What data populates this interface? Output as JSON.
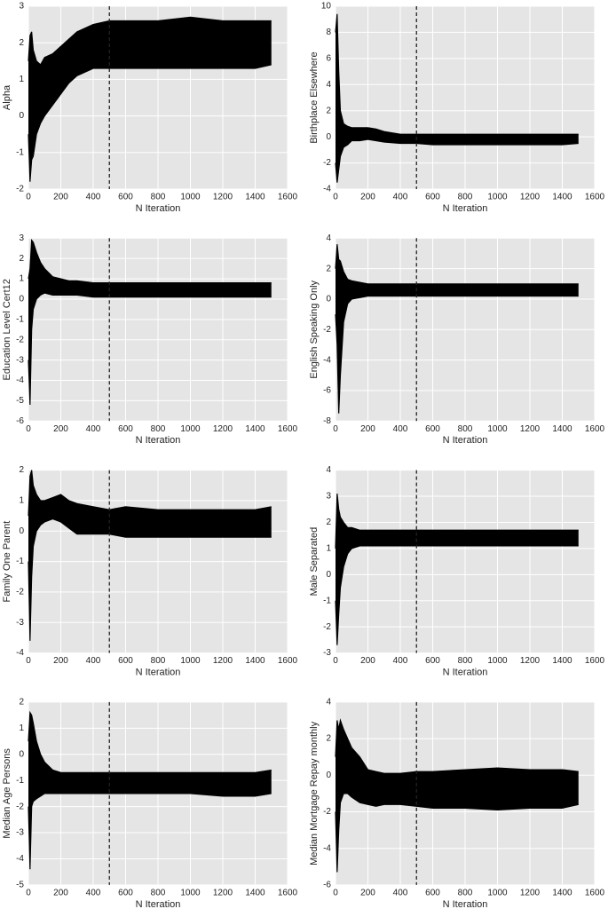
{
  "chart_data": [
    {
      "type": "line",
      "xlabel": "N Iteration",
      "ylabel": "Alpha",
      "x": [
        0,
        10,
        20,
        30,
        50,
        75,
        100,
        150,
        200,
        250,
        300,
        400,
        500,
        600,
        800,
        1000,
        1200,
        1400,
        1500
      ],
      "series": [
        {
          "color": "#000000",
          "values": [
            1.5,
            2.2,
            2.3,
            1.8,
            1.5,
            1.4,
            1.6,
            1.7,
            1.9,
            2.1,
            2.3,
            2.5,
            2.6,
            2.6,
            2.6,
            2.7,
            2.6,
            2.6,
            2.6
          ]
        },
        {
          "color": "#000000",
          "values": [
            -0.5,
            -1.8,
            -1.2,
            -1.1,
            -0.5,
            -0.2,
            0.0,
            0.3,
            0.6,
            0.9,
            1.1,
            1.3,
            1.3,
            1.3,
            1.3,
            1.3,
            1.3,
            1.3,
            1.4
          ]
        }
      ],
      "vline": 500,
      "xlim": [
        0,
        1600
      ],
      "xticks": [
        0,
        200,
        400,
        600,
        800,
        1000,
        1200,
        1400,
        1600
      ],
      "ylim": [
        -2,
        3
      ],
      "yticks": [
        -2,
        -1,
        0,
        1,
        2,
        3
      ],
      "grid": true
    },
    {
      "type": "line",
      "xlabel": "N Iteration",
      "ylabel": "Birthplace Elsewhere",
      "x": [
        0,
        10,
        20,
        30,
        50,
        75,
        100,
        150,
        200,
        250,
        300,
        400,
        500,
        600,
        800,
        1000,
        1200,
        1400,
        1500
      ],
      "series": [
        {
          "color": "#000000",
          "values": [
            8,
            9.4,
            5,
            2,
            1,
            0.8,
            0.7,
            0.7,
            0.7,
            0.6,
            0.4,
            0.2,
            0.2,
            0.2,
            0.2,
            0.2,
            0.2,
            0.2,
            0.2
          ]
        },
        {
          "color": "#000000",
          "values": [
            -2,
            -3.5,
            -2.5,
            -1.5,
            -0.8,
            -0.6,
            -0.3,
            -0.3,
            -0.2,
            -0.3,
            -0.4,
            -0.5,
            -0.5,
            -0.6,
            -0.6,
            -0.6,
            -0.6,
            -0.6,
            -0.5
          ]
        }
      ],
      "vline": 500,
      "xlim": [
        0,
        1600
      ],
      "xticks": [
        0,
        200,
        400,
        600,
        800,
        1000,
        1200,
        1400,
        1600
      ],
      "ylim": [
        -4,
        10
      ],
      "yticks": [
        -4,
        -2,
        0,
        2,
        4,
        6,
        8,
        10
      ],
      "grid": true
    },
    {
      "type": "line",
      "xlabel": "N Iteration",
      "ylabel": "Education Level Cert12",
      "x": [
        0,
        10,
        20,
        30,
        50,
        75,
        100,
        150,
        200,
        250,
        300,
        400,
        500,
        600,
        800,
        1000,
        1200,
        1400,
        1500
      ],
      "series": [
        {
          "color": "#000000",
          "values": [
            1,
            1.5,
            2.9,
            2.8,
            2.3,
            1.8,
            1.5,
            1.1,
            1.0,
            0.9,
            0.9,
            0.8,
            0.8,
            0.8,
            0.8,
            0.8,
            0.8,
            0.8,
            0.8
          ]
        },
        {
          "color": "#000000",
          "values": [
            -3,
            -5.2,
            -1.5,
            -0.5,
            0,
            0.2,
            0.3,
            0.2,
            0.2,
            0.2,
            0.2,
            0.1,
            0.1,
            0.1,
            0.1,
            0.1,
            0.1,
            0.1,
            0.1
          ]
        }
      ],
      "vline": 500,
      "xlim": [
        0,
        1600
      ],
      "xticks": [
        0,
        200,
        400,
        600,
        800,
        1000,
        1200,
        1400,
        1600
      ],
      "ylim": [
        -6,
        3
      ],
      "yticks": [
        -6,
        -5,
        -4,
        -3,
        -2,
        -1,
        0,
        1,
        2,
        3
      ],
      "grid": true
    },
    {
      "type": "line",
      "xlabel": "N Iteration",
      "ylabel": "English Speaking Only",
      "x": [
        0,
        10,
        20,
        30,
        50,
        75,
        100,
        150,
        200,
        250,
        300,
        400,
        500,
        600,
        800,
        1000,
        1200,
        1400,
        1500
      ],
      "series": [
        {
          "color": "#000000",
          "values": [
            2,
            3.6,
            2.6,
            2.5,
            1.8,
            1.3,
            1.2,
            1.1,
            1.0,
            1.0,
            1.0,
            1.0,
            1.0,
            1.0,
            1.0,
            1.0,
            1.0,
            1.0,
            1.0
          ]
        },
        {
          "color": "#000000",
          "values": [
            -1,
            -3,
            -7.5,
            -5,
            -1.5,
            -0.3,
            0,
            0.1,
            0.2,
            0.2,
            0.2,
            0.2,
            0.2,
            0.2,
            0.2,
            0.2,
            0.2,
            0.2,
            0.2
          ]
        }
      ],
      "vline": 500,
      "xlim": [
        0,
        1600
      ],
      "xticks": [
        0,
        200,
        400,
        600,
        800,
        1000,
        1200,
        1400,
        1600
      ],
      "ylim": [
        -8,
        4
      ],
      "yticks": [
        -8,
        -6,
        -4,
        -2,
        0,
        2,
        4
      ],
      "grid": true
    },
    {
      "type": "line",
      "xlabel": "N Iteration",
      "ylabel": "Family One Parent",
      "x": [
        0,
        10,
        20,
        30,
        50,
        75,
        100,
        150,
        200,
        250,
        300,
        400,
        500,
        600,
        800,
        1000,
        1200,
        1400,
        1500
      ],
      "series": [
        {
          "color": "#000000",
          "values": [
            0.5,
            1.8,
            2.0,
            1.5,
            1.2,
            1.0,
            1.0,
            1.1,
            1.2,
            1.0,
            0.9,
            0.8,
            0.7,
            0.8,
            0.7,
            0.7,
            0.7,
            0.7,
            0.8
          ]
        },
        {
          "color": "#000000",
          "values": [
            -1,
            -3.6,
            -1.5,
            -0.5,
            0,
            0.2,
            0.3,
            0.4,
            0.3,
            0.1,
            -0.1,
            -0.1,
            -0.1,
            -0.2,
            -0.2,
            -0.2,
            -0.2,
            -0.2,
            -0.2
          ]
        }
      ],
      "vline": 500,
      "xlim": [
        0,
        1600
      ],
      "xticks": [
        0,
        200,
        400,
        600,
        800,
        1000,
        1200,
        1400,
        1600
      ],
      "ylim": [
        -4,
        2
      ],
      "yticks": [
        -4,
        -3,
        -2,
        -1,
        0,
        1,
        2
      ],
      "grid": true
    },
    {
      "type": "line",
      "xlabel": "N Iteration",
      "ylabel": "Male Separated",
      "x": [
        0,
        10,
        20,
        30,
        50,
        75,
        100,
        150,
        200,
        250,
        300,
        400,
        500,
        600,
        800,
        1000,
        1200,
        1400,
        1500
      ],
      "series": [
        {
          "color": "#000000",
          "values": [
            1,
            3.1,
            2.5,
            2.2,
            2,
            1.8,
            1.8,
            1.7,
            1.7,
            1.7,
            1.7,
            1.7,
            1.7,
            1.7,
            1.7,
            1.7,
            1.7,
            1.7,
            1.7
          ]
        },
        {
          "color": "#000000",
          "values": [
            -1,
            -2.7,
            -1.5,
            -0.5,
            0.3,
            0.8,
            1.0,
            1.1,
            1.1,
            1.1,
            1.1,
            1.1,
            1.1,
            1.1,
            1.1,
            1.1,
            1.1,
            1.1,
            1.1
          ]
        }
      ],
      "vline": 500,
      "xlim": [
        0,
        1600
      ],
      "xticks": [
        0,
        200,
        400,
        600,
        800,
        1000,
        1200,
        1400,
        1600
      ],
      "ylim": [
        -3,
        4
      ],
      "yticks": [
        -3,
        -2,
        -1,
        0,
        1,
        2,
        3,
        4
      ],
      "grid": true
    },
    {
      "type": "line",
      "xlabel": "N Iteration",
      "ylabel": "Median Age Persons",
      "x": [
        0,
        10,
        20,
        30,
        50,
        75,
        100,
        150,
        200,
        250,
        300,
        400,
        500,
        600,
        800,
        1000,
        1200,
        1400,
        1500
      ],
      "series": [
        {
          "color": "#000000",
          "values": [
            0.5,
            1.6,
            1.5,
            1.2,
            0.5,
            0,
            -0.3,
            -0.6,
            -0.7,
            -0.7,
            -0.7,
            -0.7,
            -0.7,
            -0.7,
            -0.7,
            -0.7,
            -0.7,
            -0.7,
            -0.6
          ]
        },
        {
          "color": "#000000",
          "values": [
            -2,
            -4.4,
            -2,
            -1.8,
            -1.7,
            -1.6,
            -1.5,
            -1.5,
            -1.5,
            -1.5,
            -1.5,
            -1.5,
            -1.5,
            -1.5,
            -1.5,
            -1.5,
            -1.6,
            -1.6,
            -1.5
          ]
        }
      ],
      "vline": 500,
      "xlim": [
        0,
        1600
      ],
      "xticks": [
        0,
        200,
        400,
        600,
        800,
        1000,
        1200,
        1400,
        1600
      ],
      "ylim": [
        -5,
        2
      ],
      "yticks": [
        -5,
        -4,
        -3,
        -2,
        -1,
        0,
        1,
        2
      ],
      "grid": true
    },
    {
      "type": "line",
      "xlabel": "N Iteration",
      "ylabel": "Median Mortgage Repay monthly",
      "x": [
        0,
        10,
        20,
        30,
        50,
        75,
        100,
        150,
        200,
        250,
        300,
        400,
        500,
        600,
        800,
        1000,
        1200,
        1400,
        1500
      ],
      "series": [
        {
          "color": "#000000",
          "values": [
            1,
            3,
            2.5,
            3,
            2.5,
            2,
            1.5,
            1,
            0.3,
            0.2,
            0.1,
            0.1,
            0.2,
            0.2,
            0.3,
            0.4,
            0.3,
            0.3,
            0.2
          ]
        },
        {
          "color": "#000000",
          "values": [
            -2,
            -5.3,
            -3,
            -1.5,
            -1,
            -1,
            -1.2,
            -1.5,
            -1.6,
            -1.7,
            -1.6,
            -1.6,
            -1.7,
            -1.8,
            -1.8,
            -1.9,
            -1.8,
            -1.8,
            -1.6
          ]
        }
      ],
      "vline": 500,
      "xlim": [
        0,
        1600
      ],
      "xticks": [
        0,
        200,
        400,
        600,
        800,
        1000,
        1200,
        1400,
        1600
      ],
      "ylim": [
        -6,
        4
      ],
      "yticks": [
        -6,
        -4,
        -2,
        0,
        2,
        4
      ],
      "grid": true
    }
  ]
}
